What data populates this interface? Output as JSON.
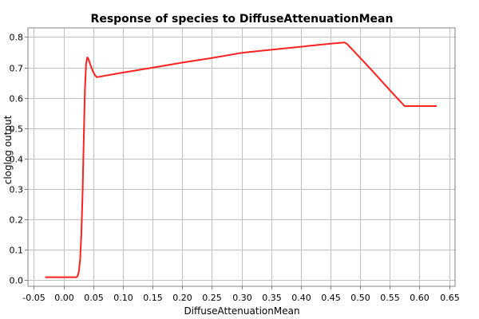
{
  "chart_data": {
    "type": "line",
    "title": "Response of species to DiffuseAttenuationMean",
    "xlabel": "DiffuseAttenuationMean",
    "ylabel": "cloglog output",
    "xlim": [
      -0.06,
      0.66
    ],
    "ylim": [
      -0.02,
      0.83
    ],
    "x_ticks": [
      -0.05,
      0.0,
      0.05,
      0.1,
      0.15,
      0.2,
      0.25,
      0.3,
      0.35,
      0.4,
      0.45,
      0.5,
      0.55,
      0.6,
      0.65
    ],
    "x_tick_labels": [
      "-0.05",
      "0.00",
      "0.05",
      "0.10",
      "0.15",
      "0.20",
      "0.25",
      "0.30",
      "0.35",
      "0.40",
      "0.45",
      "0.50",
      "0.55",
      "0.60",
      "0.65"
    ],
    "y_ticks": [
      0.0,
      0.1,
      0.2,
      0.3,
      0.4,
      0.5,
      0.6,
      0.7,
      0.8
    ],
    "y_tick_labels": [
      "0.0",
      "0.1",
      "0.2",
      "0.3",
      "0.4",
      "0.5",
      "0.6",
      "0.7",
      "0.8"
    ],
    "grid": true,
    "legend": "none",
    "series": [
      {
        "color": "#ff2020",
        "x": [
          -0.03,
          0.022,
          0.024,
          0.026,
          0.028,
          0.03,
          0.032,
          0.034,
          0.036,
          0.038,
          0.04,
          0.042,
          0.045,
          0.048,
          0.05,
          0.053,
          0.056,
          0.1,
          0.15,
          0.2,
          0.25,
          0.3,
          0.35,
          0.4,
          0.45,
          0.474,
          0.478,
          0.5,
          0.52,
          0.55,
          0.575,
          0.6,
          0.628
        ],
        "y": [
          0.01,
          0.01,
          0.015,
          0.03,
          0.07,
          0.15,
          0.28,
          0.45,
          0.62,
          0.71,
          0.733,
          0.728,
          0.71,
          0.695,
          0.685,
          0.675,
          0.668,
          0.683,
          0.699,
          0.716,
          0.731,
          0.748,
          0.758,
          0.768,
          0.778,
          0.782,
          0.777,
          0.732,
          0.69,
          0.625,
          0.573,
          0.573,
          0.573
        ]
      }
    ]
  }
}
